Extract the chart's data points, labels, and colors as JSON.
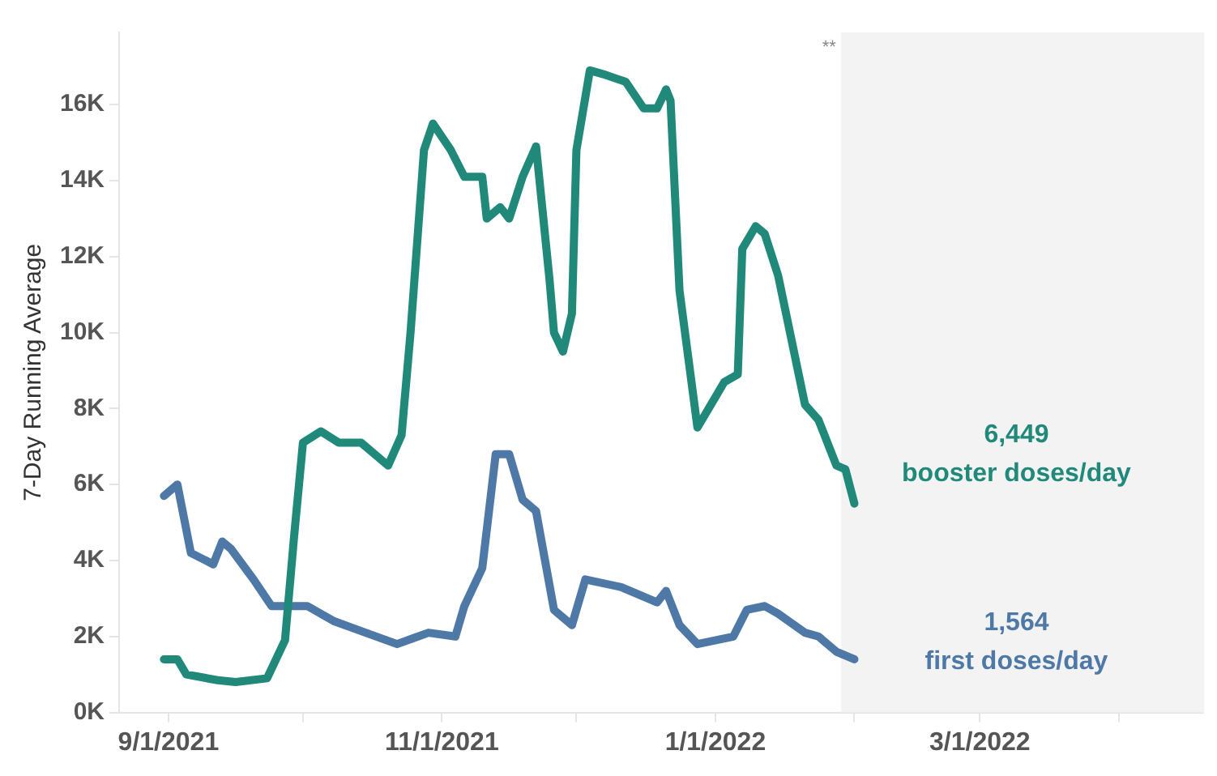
{
  "chart_data": {
    "type": "line",
    "ylabel": "7-Day Running Average",
    "xlim": [
      "2021-08-21",
      "2022-04-20"
    ],
    "ylim": [
      0,
      17900
    ],
    "xticks": [
      {
        "value": "2021-09-01",
        "label": "9/1/2021"
      },
      {
        "value": "2021-10-01",
        "label": null
      },
      {
        "value": "2021-11-01",
        "label": "11/1/2021"
      },
      {
        "value": "2021-12-01",
        "label": null
      },
      {
        "value": "2022-01-01",
        "label": "1/1/2022"
      },
      {
        "value": "2022-02-01",
        "label": null
      },
      {
        "value": "2022-03-01",
        "label": "3/1/2022"
      },
      {
        "value": "2022-04-01",
        "label": null
      }
    ],
    "yticks": [
      {
        "value": 0,
        "label": "0K"
      },
      {
        "value": 2000,
        "label": "2K"
      },
      {
        "value": 4000,
        "label": "4K"
      },
      {
        "value": 6000,
        "label": "6K"
      },
      {
        "value": 8000,
        "label": "8K"
      },
      {
        "value": 10000,
        "label": "10K"
      },
      {
        "value": 12000,
        "label": "12K"
      },
      {
        "value": 14000,
        "label": "14K"
      },
      {
        "value": 16000,
        "label": "16K"
      }
    ],
    "legend": false,
    "marker": "none",
    "line_style": "solid",
    "bands": [
      {
        "axis": "x",
        "from": "2022-01-29",
        "to": "2022-04-20",
        "label": "**",
        "color": "#f3f3f3"
      }
    ],
    "annotations": [
      "6,449",
      "1,564"
    ],
    "series": [
      {
        "name": "booster doses/day",
        "color": "#21897a",
        "x": [
          "2021-08-31",
          "2021-09-03",
          "2021-09-05",
          "2021-09-12",
          "2021-09-16",
          "2021-09-23",
          "2021-09-27",
          "2021-09-29",
          "2021-10-01",
          "2021-10-05",
          "2021-10-09",
          "2021-10-14",
          "2021-10-20",
          "2021-10-23",
          "2021-10-25",
          "2021-10-28",
          "2021-10-30",
          "2021-11-03",
          "2021-11-06",
          "2021-11-10",
          "2021-11-11",
          "2021-11-14",
          "2021-11-16",
          "2021-11-19",
          "2021-11-22",
          "2021-11-25",
          "2021-11-26",
          "2021-11-28",
          "2021-11-30",
          "2021-12-01",
          "2021-12-04",
          "2021-12-07",
          "2021-12-12",
          "2021-12-16",
          "2021-12-19",
          "2021-12-21",
          "2021-12-22",
          "2021-12-24",
          "2021-12-26",
          "2021-12-28",
          "2021-12-30",
          "2022-01-03",
          "2022-01-06",
          "2022-01-07",
          "2022-01-10",
          "2022-01-12",
          "2022-01-15",
          "2022-01-21",
          "2022-01-24",
          "2022-01-28",
          "2022-01-30",
          "2022-02-01"
        ],
        "values": [
          1400,
          1400,
          1000,
          850,
          800,
          900,
          1900,
          4600,
          7100,
          7400,
          7100,
          7100,
          6500,
          7300,
          10000,
          14800,
          15500,
          14800,
          14100,
          14100,
          13000,
          13300,
          13000,
          14100,
          14900,
          11400,
          10000,
          9500,
          10500,
          14800,
          16900,
          16800,
          16600,
          15900,
          15900,
          16400,
          16100,
          11100,
          9300,
          7500,
          7900,
          8700,
          8900,
          12200,
          12800,
          12600,
          11500,
          8100,
          7700,
          6500,
          6400,
          5500
        ]
      },
      {
        "name": "first doses/day",
        "color": "#4e79a7",
        "x": [
          "2021-08-31",
          "2021-09-03",
          "2021-09-06",
          "2021-09-11",
          "2021-09-13",
          "2021-09-15",
          "2021-09-20",
          "2021-09-24",
          "2021-10-02",
          "2021-10-08",
          "2021-10-15",
          "2021-10-22",
          "2021-10-29",
          "2021-11-04",
          "2021-11-06",
          "2021-11-10",
          "2021-11-13",
          "2021-11-16",
          "2021-11-19",
          "2021-11-22",
          "2021-11-26",
          "2021-11-30",
          "2021-12-03",
          "2021-12-11",
          "2021-12-19",
          "2021-12-21",
          "2021-12-24",
          "2021-12-28",
          "2022-01-05",
          "2022-01-08",
          "2022-01-12",
          "2022-01-15",
          "2022-01-21",
          "2022-01-24",
          "2022-01-28",
          "2022-02-01"
        ],
        "values": [
          5700,
          6000,
          4200,
          3900,
          4500,
          4300,
          3500,
          2800,
          2800,
          2400,
          2100,
          1800,
          2100,
          2000,
          2800,
          3800,
          6800,
          6800,
          5600,
          5300,
          2700,
          2300,
          3500,
          3300,
          2900,
          3200,
          2300,
          1800,
          2000,
          2700,
          2800,
          2600,
          2100,
          2000,
          1600,
          1400
        ]
      }
    ]
  }
}
